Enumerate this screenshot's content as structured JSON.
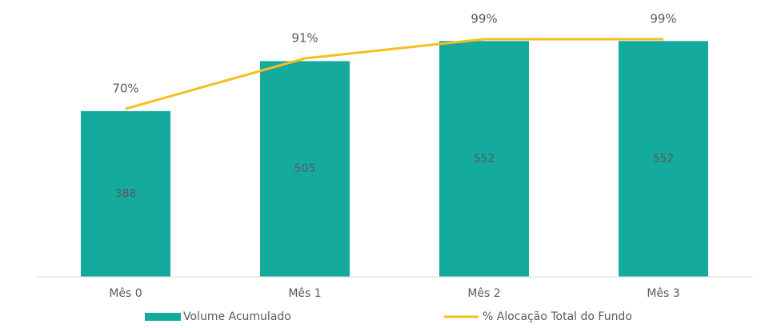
{
  "chart_data": {
    "type": "bar",
    "categories": [
      "Mês 0",
      "Mês 1",
      "Mês 2",
      "Mês 3"
    ],
    "series": [
      {
        "name": "Volume Acumulado",
        "type": "bar",
        "color": "#15aa9e",
        "values": [
          388,
          505,
          552,
          552
        ]
      },
      {
        "name": "% Alocação Total do Fundo",
        "type": "line",
        "axis": "y2",
        "color": "#f6be1e",
        "values": [
          70,
          91,
          99,
          99
        ],
        "value_labels": [
          "70%",
          "91%",
          "99%",
          "99%"
        ]
      }
    ],
    "ylim": [
      0,
      590
    ],
    "y2lim": [
      0,
      105
    ],
    "grid": false,
    "legend": "bottom"
  }
}
